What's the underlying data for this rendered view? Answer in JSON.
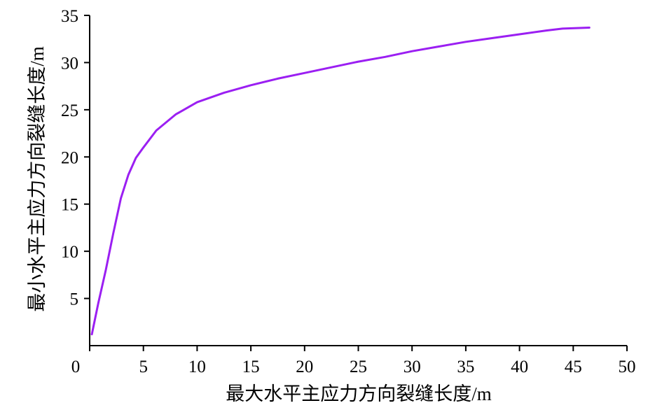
{
  "chart_data": {
    "type": "line",
    "title": "",
    "xlabel": "最大水平主应力方向裂缝长度/m",
    "ylabel": "最小水平主应力方向裂缝长度/m",
    "xlim": [
      0,
      50
    ],
    "ylim": [
      0,
      35
    ],
    "xticks": [
      "0",
      "5",
      "10",
      "15",
      "20",
      "25",
      "30",
      "35",
      "40",
      "45",
      "50"
    ],
    "yticks": [
      "5",
      "10",
      "15",
      "20",
      "25",
      "30",
      "35"
    ],
    "grid": false,
    "legend": "none",
    "series": [
      {
        "color": "#9b1ff2",
        "x": [
          0.2,
          0.8,
          1.5,
          2.2,
          2.9,
          3.6,
          4.3,
          5.0,
          6.2,
          8.0,
          10.0,
          12.5,
          15.0,
          17.5,
          20.0,
          22.5,
          25.0,
          27.5,
          30.0,
          32.5,
          35.0,
          37.5,
          40.0,
          42.5,
          44.0,
          46.5
        ],
        "y": [
          1.2,
          4.5,
          8.0,
          11.9,
          15.6,
          18.1,
          19.9,
          21.0,
          22.8,
          24.5,
          25.8,
          26.8,
          27.6,
          28.3,
          28.9,
          29.5,
          30.1,
          30.6,
          31.2,
          31.7,
          32.2,
          32.6,
          33.0,
          33.4,
          33.6,
          33.7
        ]
      }
    ]
  }
}
